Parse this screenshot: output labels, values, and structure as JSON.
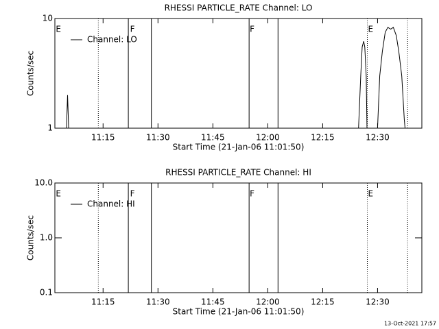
{
  "chart_data": [
    {
      "type": "line",
      "title": "RHESSI PARTICLE_RATE Channel: LO",
      "xlabel": "Start Time (21-Jan-06 11:01:50)",
      "ylabel": "Counts/sec",
      "xlim": [
        661.83,
        762.1
      ],
      "xticks": [
        {
          "value": 675,
          "label": "11:15"
        },
        {
          "value": 690,
          "label": "11:30"
        },
        {
          "value": 705,
          "label": "11:45"
        },
        {
          "value": 720,
          "label": "12:00"
        },
        {
          "value": 735,
          "label": "12:15"
        },
        {
          "value": 750,
          "label": "12:30"
        }
      ],
      "ylim": [
        1,
        10
      ],
      "yticks": [
        1,
        10
      ],
      "log_y": true,
      "legend": "upper left",
      "x": [
        665.0,
        665.3,
        665.6,
        null,
        744.8,
        745.4,
        745.8,
        746.2,
        746.5,
        746.9,
        747.1,
        null,
        750.0,
        750.6,
        751.3,
        752.1,
        752.8,
        753.6,
        754.3,
        755.1,
        755.8,
        756.6,
        757.3,
        757.5
      ],
      "series": [
        {
          "name": "Channel: LO",
          "color": "#000000",
          "values": [
            1,
            2,
            1,
            null,
            1,
            3,
            5.5,
            6.2,
            5.5,
            3,
            1,
            null,
            1,
            3,
            5,
            7.5,
            8.3,
            8,
            8.3,
            7,
            5,
            3,
            1.2,
            1
          ]
        }
      ],
      "vlines": [
        {
          "x": 673.7,
          "style": "dotted"
        },
        {
          "x": 681.9,
          "style": "solid"
        },
        {
          "x": 688.2,
          "style": "solid"
        },
        {
          "x": 714.9,
          "style": "solid"
        },
        {
          "x": 722.8,
          "style": "solid"
        },
        {
          "x": 747.2,
          "style": "dotted"
        },
        {
          "x": 758.2,
          "style": "dotted"
        }
      ],
      "annotations": [
        {
          "x": 661.9,
          "text": "E"
        },
        {
          "x": 682.2,
          "text": "F"
        },
        {
          "x": 714.9,
          "text": "F"
        },
        {
          "x": 747.2,
          "text": "E"
        }
      ]
    },
    {
      "type": "line",
      "title": "RHESSI PARTICLE_RATE Channel: HI",
      "xlabel": "Start Time (21-Jan-06 11:01:50)",
      "ylabel": "Counts/sec",
      "xlim": [
        661.83,
        762.1
      ],
      "xticks": [
        {
          "value": 675,
          "label": "11:15"
        },
        {
          "value": 690,
          "label": "11:30"
        },
        {
          "value": 705,
          "label": "11:45"
        },
        {
          "value": 720,
          "label": "12:00"
        },
        {
          "value": 735,
          "label": "12:15"
        },
        {
          "value": 750,
          "label": "12:30"
        }
      ],
      "ylim": [
        0.1,
        10
      ],
      "yticks": [
        {
          "value": 0.1,
          "label": "0.1"
        },
        {
          "value": 1,
          "label": "1.0"
        },
        {
          "value": 10,
          "label": "10.0"
        }
      ],
      "log_y": true,
      "legend": "upper left",
      "x": [],
      "series": [
        {
          "name": "Channel: HI",
          "color": "#000000",
          "values": []
        }
      ],
      "vlines": [
        {
          "x": 673.7,
          "style": "dotted"
        },
        {
          "x": 681.9,
          "style": "solid"
        },
        {
          "x": 688.2,
          "style": "solid"
        },
        {
          "x": 714.9,
          "style": "solid"
        },
        {
          "x": 722.8,
          "style": "solid"
        },
        {
          "x": 747.2,
          "style": "dotted"
        },
        {
          "x": 758.2,
          "style": "dotted"
        }
      ],
      "annotations": [
        {
          "x": 661.9,
          "text": "E"
        },
        {
          "x": 682.2,
          "text": "F"
        },
        {
          "x": 714.9,
          "text": "F"
        },
        {
          "x": 747.2,
          "text": "E"
        }
      ]
    }
  ],
  "footer": "13-Oct-2021 17:57"
}
